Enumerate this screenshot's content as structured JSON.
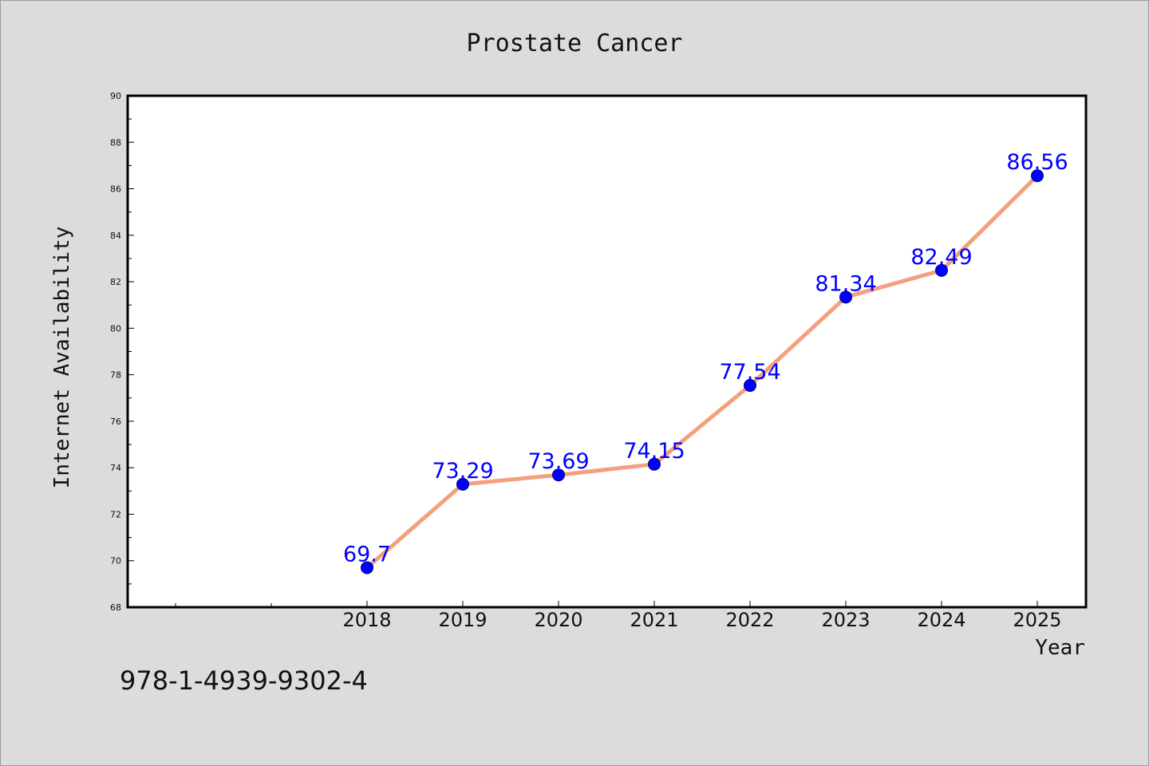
{
  "colors": {
    "background": "#dcdcdc",
    "plot_background": "#ffffff",
    "line": "#f4a07e",
    "marker": "#0000ff",
    "data_label": "#0000ff",
    "text": "#111111"
  },
  "footer_text": "978-1-4939-9302-4",
  "chart_data": {
    "type": "line",
    "title": "Prostate Cancer",
    "xlabel": "Year",
    "ylabel": "Internet Availability",
    "x": [
      "2018",
      "2019",
      "2020",
      "2021",
      "2022",
      "2023",
      "2024",
      "2025"
    ],
    "series": [
      {
        "values": [
          69.7,
          73.29,
          73.69,
          74.15,
          77.54,
          81.34,
          82.49,
          86.56
        ],
        "labels": [
          "69.7",
          "73.29",
          "73.69",
          "74.15",
          "77.54",
          "81.34",
          "82.49",
          "86.56"
        ]
      }
    ],
    "ylim": [
      68,
      90
    ],
    "yticks": [
      "68",
      "70",
      "72",
      "74",
      "76",
      "78",
      "80",
      "82",
      "84",
      "86",
      "88",
      "90"
    ],
    "grid": false,
    "legend": "none"
  }
}
